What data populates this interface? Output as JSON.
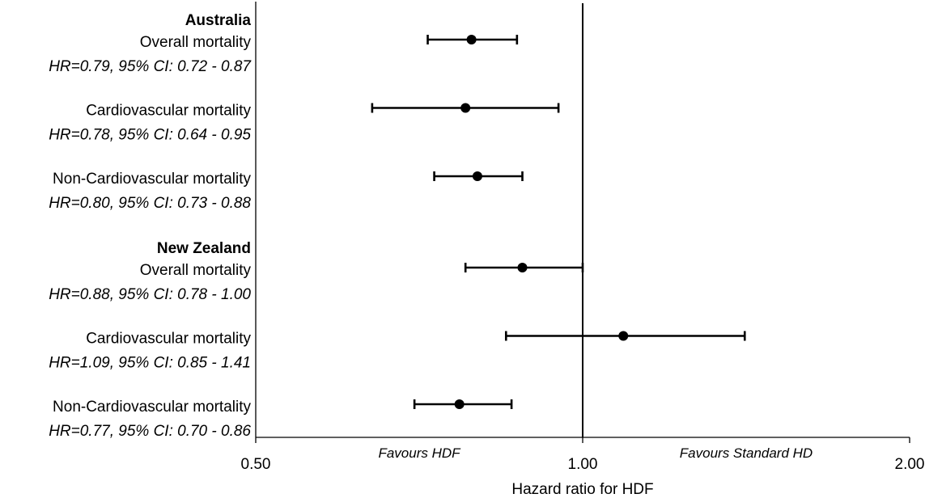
{
  "chart_data": {
    "type": "forest",
    "x_scale": "log",
    "xlim": [
      0.5,
      2.0
    ],
    "reference_line": 1.0,
    "xlabel": "Hazard ratio for HDF",
    "xticks": [
      {
        "value": 0.5,
        "label": "0.50"
      },
      {
        "value": 1.0,
        "label": "1.00"
      },
      {
        "value": 2.0,
        "label": "2.00"
      }
    ],
    "annotations": {
      "left": "Favours HDF",
      "right": "Favours Standard HD"
    },
    "groups": [
      {
        "name": "Australia",
        "rows": [
          {
            "label": "Overall mortality",
            "stat": "HR=0.79, 95% CI: 0.72 - 0.87",
            "hr": 0.79,
            "lo": 0.72,
            "hi": 0.87
          },
          {
            "label": "Cardiovascular mortality",
            "stat": "HR=0.78, 95% CI: 0.64 - 0.95",
            "hr": 0.78,
            "lo": 0.64,
            "hi": 0.95
          },
          {
            "label": "Non-Cardiovascular mortality",
            "stat": "HR=0.80, 95% CI: 0.73 - 0.88",
            "hr": 0.8,
            "lo": 0.73,
            "hi": 0.88
          }
        ]
      },
      {
        "name": "New Zealand",
        "rows": [
          {
            "label": "Overall mortality",
            "stat": "HR=0.88, 95% CI: 0.78 - 1.00",
            "hr": 0.88,
            "lo": 0.78,
            "hi": 1.0
          },
          {
            "label": "Cardiovascular mortality",
            "stat": "HR=1.09, 95% CI: 0.85 - 1.41",
            "hr": 1.09,
            "lo": 0.85,
            "hi": 1.41
          },
          {
            "label": "Non-Cardiovascular mortality",
            "stat": "HR=0.77, 95% CI: 0.70 - 0.86",
            "hr": 0.77,
            "lo": 0.7,
            "hi": 0.86
          }
        ]
      }
    ]
  }
}
